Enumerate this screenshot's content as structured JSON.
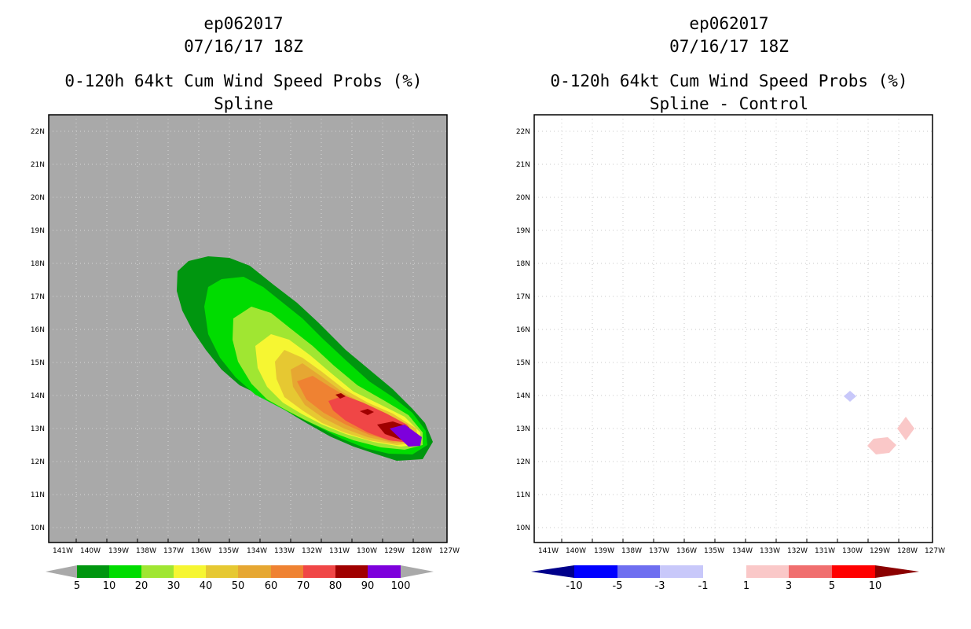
{
  "left_panel": {
    "storm_id": "ep062017",
    "datetime": "07/16/17 18Z",
    "product": "0-120h 64kt Cum Wind Speed Probs (%)",
    "subtitle": "Spline",
    "background_color": "#a9a9a9",
    "colorbar": {
      "labels": [
        "5",
        "10",
        "20",
        "30",
        "40",
        "50",
        "60",
        "70",
        "80",
        "90",
        "100"
      ],
      "colors": [
        "#00960f",
        "#00dc00",
        "#a0e632",
        "#f6f632",
        "#e6c832",
        "#e6a732",
        "#ef8232",
        "#f04646",
        "#a00000",
        "#7d00dc"
      ],
      "extend_color": "#a9a9a9"
    }
  },
  "right_panel": {
    "storm_id": "ep062017",
    "datetime": "07/16/17 18Z",
    "product": "0-120h 64kt Cum Wind Speed Probs (%)",
    "subtitle": "Spline - Control",
    "background_color": "#ffffff",
    "colorbar": {
      "labels": [
        "-10",
        "-5",
        "-3",
        "-1",
        "1",
        "3",
        "5",
        "10"
      ],
      "colors": [
        "#0000ff",
        "#6e6ef0",
        "#c8c8fa",
        "#ffffff",
        "#fac8c8",
        "#f06e6e",
        "#ff0000"
      ],
      "extend_low": "#00008b",
      "extend_high": "#8b0000"
    }
  },
  "axes": {
    "lon_labels": [
      "141W",
      "140W",
      "139W",
      "138W",
      "137W",
      "136W",
      "135W",
      "134W",
      "133W",
      "132W",
      "131W",
      "130W",
      "129W",
      "128W",
      "127W"
    ],
    "lat_labels": [
      "22N",
      "21N",
      "20N",
      "19N",
      "18N",
      "17N",
      "16N",
      "15N",
      "14N",
      "13N",
      "12N",
      "11N",
      "10N"
    ]
  },
  "chart_data": {
    "type": "heatmap",
    "title": "0-120h 64kt Cum Wind Speed Probs (%)",
    "region": {
      "lon_range": [
        "141W",
        "127W"
      ],
      "lat_range": [
        "9.5N",
        "22.5N"
      ]
    },
    "max_probability_location": {
      "lon": "128.5W",
      "lat": "12.7N",
      "value_range": "90-100"
    },
    "difference_features": [
      {
        "lon": "130W",
        "lat": "14N",
        "range": "-3 to -1"
      },
      {
        "lon": "128.9W",
        "lat": "12.5N",
        "range": "1 to 3"
      },
      {
        "lon": "128W",
        "lat": "13N",
        "range": "1 to 3"
      }
    ]
  }
}
